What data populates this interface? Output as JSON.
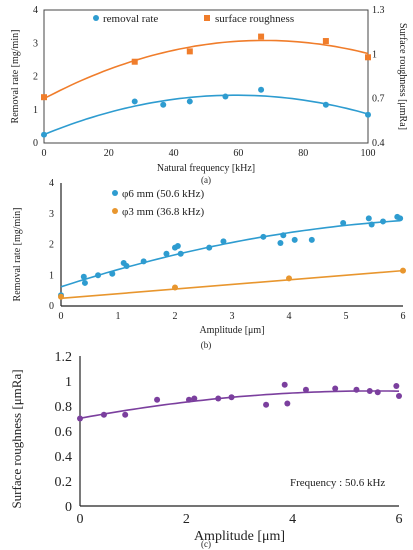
{
  "chart_data": [
    {
      "panel": "(a)",
      "type": "scatter",
      "xlabel": "Natural frequency [kHz]",
      "ylabel": "Removal rate [mg/min]",
      "y2label": "Surface roughness [μmRa]",
      "xlim": [
        0,
        100
      ],
      "ylim": [
        0,
        4
      ],
      "y2lim": [
        0.4,
        1.3
      ],
      "xticks": [
        "0",
        "20",
        "40",
        "60",
        "80",
        "100"
      ],
      "yticks": [
        "0",
        "1",
        "2",
        "3",
        "4"
      ],
      "y2ticks": [
        "0.4",
        "0.7",
        "1",
        "1.3"
      ],
      "legend_position": "top",
      "series": [
        {
          "name": "removal rate",
          "axis": "left",
          "color": "#2e9cd0",
          "marker": "circle",
          "x": [
            0,
            28,
            36.8,
            45,
            56,
            67,
            87,
            100
          ],
          "y": [
            0.25,
            1.25,
            1.15,
            1.25,
            1.4,
            1.6,
            1.15,
            0.85
          ]
        },
        {
          "name": "surface roughness",
          "axis": "right",
          "color": "#f07d2b",
          "marker": "square",
          "x": [
            0,
            28,
            45,
            67,
            87,
            100
          ],
          "y": [
            0.71,
            0.95,
            1.02,
            1.12,
            1.09,
            0.98
          ]
        }
      ]
    },
    {
      "panel": "(b)",
      "type": "scatter",
      "xlabel": "Amplitude [μm]",
      "ylabel": "Removal rate [mg/min]",
      "xlim": [
        0,
        6
      ],
      "ylim": [
        0,
        4
      ],
      "xticks": [
        "0",
        "1",
        "2",
        "3",
        "4",
        "5",
        "6"
      ],
      "yticks": [
        "0",
        "1",
        "2",
        "3",
        "4"
      ],
      "legend_position": "top-left",
      "series": [
        {
          "name": "φ6 mm (50.6 kHz)",
          "color": "#2e9cd0",
          "marker": "circle",
          "x": [
            0,
            0.4,
            0.42,
            0.65,
            0.9,
            1.1,
            1.15,
            1.45,
            1.85,
            2.0,
            2.05,
            2.1,
            2.6,
            2.85,
            3.55,
            3.85,
            3.9,
            4.1,
            4.4,
            4.95,
            5.4,
            5.45,
            5.65,
            5.9,
            5.95
          ],
          "y": [
            0.35,
            0.95,
            0.75,
            1.0,
            1.05,
            1.4,
            1.3,
            1.45,
            1.7,
            1.9,
            1.95,
            1.7,
            1.9,
            2.1,
            2.25,
            2.05,
            2.3,
            2.15,
            2.15,
            2.7,
            2.85,
            2.65,
            2.75,
            2.9,
            2.85
          ]
        },
        {
          "name": "φ3 mm (36.8 kHz)",
          "color": "#e8962e",
          "marker": "circle",
          "x": [
            0,
            2.0,
            4.0,
            6.0
          ],
          "y": [
            0.3,
            0.6,
            0.9,
            1.15
          ]
        }
      ]
    },
    {
      "panel": "(c)",
      "type": "scatter",
      "xlabel": "Amplitude [μm]",
      "ylabel": "Surface roughness [μmRa]",
      "xlim": [
        0,
        6
      ],
      "ylim": [
        0,
        1.2
      ],
      "xticks": [
        "0",
        "2",
        "4",
        "6"
      ],
      "yticks": [
        "0",
        "0.2",
        "0.4",
        "0.6",
        "0.8",
        "1",
        "1.2"
      ],
      "annotation": "Frequency : 50.6 kHz",
      "series": [
        {
          "color": "#7b3f9e",
          "marker": "circle",
          "x": [
            0,
            0.45,
            0.85,
            1.45,
            2.05,
            2.15,
            2.6,
            2.85,
            3.5,
            3.85,
            3.9,
            4.25,
            4.8,
            5.2,
            5.45,
            5.6,
            5.95,
            6.0
          ],
          "y": [
            0.7,
            0.73,
            0.73,
            0.85,
            0.85,
            0.86,
            0.86,
            0.87,
            0.81,
            0.97,
            0.82,
            0.93,
            0.94,
            0.93,
            0.92,
            0.91,
            0.96,
            0.88
          ]
        }
      ]
    }
  ]
}
